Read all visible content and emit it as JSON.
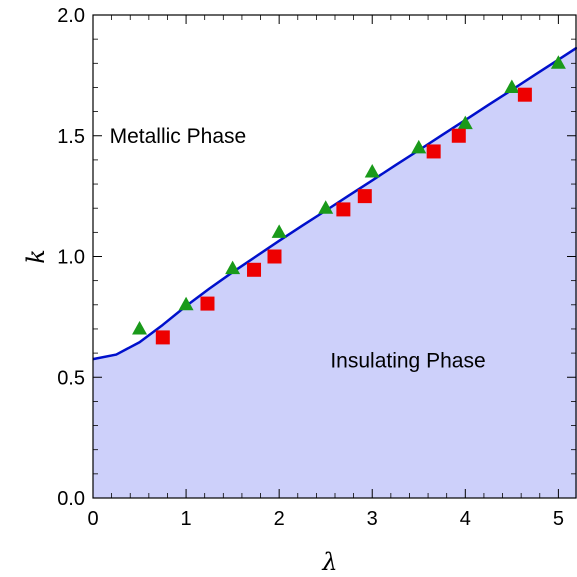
{
  "chart_data": {
    "type": "scatter",
    "title": "",
    "xlabel": "λ",
    "ylabel": "k",
    "xlim": [
      0,
      5.2
    ],
    "ylim": [
      0,
      2.0
    ],
    "x_ticks": [
      0,
      1,
      2,
      3,
      4,
      5
    ],
    "y_ticks": [
      0.0,
      0.5,
      1.0,
      1.5,
      2.0
    ],
    "x_tick_labels": [
      "0",
      "1",
      "2",
      "3",
      "4",
      "5"
    ],
    "y_tick_labels": [
      "0.0",
      "0.5",
      "1.0",
      "1.5",
      "2.0"
    ],
    "grid": false,
    "annotations": [
      {
        "text": "Metallic Phase",
        "x": 0.2,
        "y": 1.5
      },
      {
        "text": "Insulating Phase",
        "x": 2.55,
        "y": 0.57
      }
    ],
    "boundary_curve": {
      "x": [
        0,
        0.25,
        0.5,
        0.75,
        1.0,
        1.25,
        1.5,
        1.75,
        2.0,
        2.25,
        2.5,
        2.75,
        3.0,
        3.25,
        3.5,
        3.75,
        4.0,
        4.25,
        4.5,
        4.75,
        5.0,
        5.2
      ],
      "y": [
        0.575,
        0.594,
        0.645,
        0.717,
        0.795,
        0.867,
        0.935,
        1.0,
        1.065,
        1.128,
        1.19,
        1.253,
        1.315,
        1.378,
        1.44,
        1.503,
        1.565,
        1.628,
        1.69,
        1.753,
        1.815,
        1.865
      ],
      "color": "#0010cc",
      "fill_below": "#cdd0fa"
    },
    "series": [
      {
        "marker": "triangle",
        "color": "#1a9a1a",
        "x": [
          0.5,
          1.0,
          1.5,
          2.0,
          2.5,
          3.0,
          3.5,
          4.0,
          4.5,
          5.0
        ],
        "y": [
          0.7,
          0.8,
          0.95,
          1.1,
          1.2,
          1.35,
          1.45,
          1.55,
          1.7,
          1.8
        ]
      },
      {
        "marker": "square",
        "color": "#ee0000",
        "x": [
          0.75,
          1.23,
          1.73,
          1.95,
          2.69,
          2.92,
          3.66,
          3.93,
          4.64
        ],
        "y": [
          0.665,
          0.805,
          0.945,
          1.0,
          1.195,
          1.25,
          1.435,
          1.5,
          1.67
        ]
      }
    ]
  }
}
